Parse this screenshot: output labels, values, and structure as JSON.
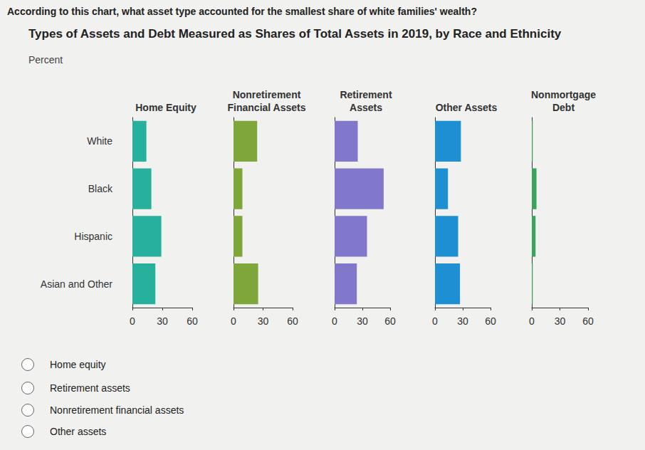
{
  "question": "According to this chart, what asset type accounted for the smallest share of white families' wealth?",
  "title": "Types of Assets and Debt Measured as Shares of Total Assets in 2019, by Race and Ethnicity",
  "subtitle": "Percent",
  "chart_data": [
    {
      "type": "bar",
      "orientation": "horizontal",
      "title": "Home Equity",
      "categories": [
        "White",
        "Black",
        "Hispanic",
        "Asian and Other"
      ],
      "values": [
        14,
        19,
        29,
        23
      ],
      "color": "#27b19c",
      "xlim": [
        0,
        60
      ],
      "xticks": [
        0,
        30,
        60
      ],
      "grid": false,
      "tick_labels": true
    },
    {
      "type": "bar",
      "orientation": "horizontal",
      "title": "Nonretirement\nFinancial Assets",
      "categories": [
        "White",
        "Black",
        "Hispanic",
        "Asian and Other"
      ],
      "values": [
        24,
        9,
        9,
        25
      ],
      "color": "#7ea63a",
      "xlim": [
        0,
        60
      ],
      "xticks": [
        0,
        30,
        60
      ],
      "grid": false,
      "tick_labels": "x"
    },
    {
      "type": "bar",
      "orientation": "horizontal",
      "title": "Retirement\nAssets",
      "categories": [
        "White",
        "Black",
        "Hispanic",
        "Asian and Other"
      ],
      "values": [
        25,
        53,
        35,
        24
      ],
      "color": "#8178cb",
      "xlim": [
        0,
        60
      ],
      "xticks": [
        0,
        30,
        60
      ],
      "grid": false,
      "tick_labels": "x"
    },
    {
      "type": "bar",
      "orientation": "horizontal",
      "title": "Other Assets",
      "categories": [
        "White",
        "Black",
        "Hispanic",
        "Asian and Other"
      ],
      "values": [
        28,
        14,
        25,
        27
      ],
      "color": "#1f8fd3",
      "xlim": [
        0,
        60
      ],
      "xticks": [
        0,
        30,
        60
      ],
      "grid": false,
      "tick_labels": "x"
    },
    {
      "type": "bar",
      "orientation": "horizontal",
      "title": "Nonmortgage\nDebt",
      "categories": [
        "White",
        "Black",
        "Hispanic",
        "Asian and Other"
      ],
      "values": [
        1,
        5,
        4,
        1
      ],
      "color": "#3aa45a",
      "xlim": [
        0,
        60
      ],
      "xticks": [
        0,
        30,
        60
      ],
      "grid": false,
      "tick_labels": "x"
    }
  ],
  "options": [
    "Home equity",
    "Retirement assets",
    "Nonretirement financial assets",
    "Other assets"
  ]
}
